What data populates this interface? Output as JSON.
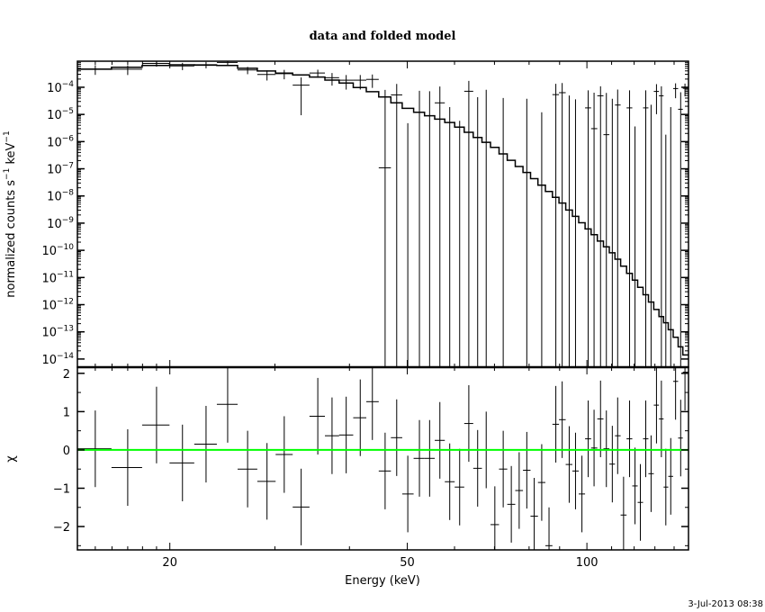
{
  "chart_data": {
    "type": "line",
    "title": "data and folded model",
    "xlabel": "Energy (keV)",
    "xscale": "log",
    "xlim": [
      14,
      148
    ],
    "xticks": [
      20,
      50,
      100
    ],
    "xtick_labels": [
      "20",
      "50",
      "100"
    ],
    "xminor": [
      14,
      15,
      16,
      17,
      18,
      19,
      30,
      40,
      60,
      70,
      80,
      90,
      110,
      120,
      130,
      140
    ],
    "timestamp": "3-Jul-2013 08:38",
    "top_panel": {
      "ylabel_main": "normalized counts s",
      "ylabel_sup1": "−1",
      "ylabel_mid": " keV",
      "ylabel_sup2": "−1",
      "yscale": "log",
      "ylim": [
        5e-15,
        0.00091
      ],
      "ytick_base": "10",
      "ytick_exponents": [
        "−4",
        "−5",
        "−6",
        "−7",
        "−8",
        "−9",
        "−10",
        "−11",
        "−12",
        "−13",
        "−14"
      ],
      "ytick_values": [
        0.0001,
        1e-05,
        1e-06,
        1e-07,
        1e-08,
        1e-09,
        1e-10,
        1e-11,
        1e-12,
        1e-13,
        1e-14
      ]
    },
    "bottom_panel": {
      "ylabel": "χ",
      "ylim": [
        -2.61,
        2.16
      ],
      "yticks": [
        2,
        1,
        0,
        -1,
        -2
      ],
      "ytick_labels": [
        "2",
        "1",
        "0",
        "−1",
        "−2"
      ],
      "zero_line_color": "#00ff00"
    },
    "model": {
      "energy": [
        14,
        15,
        20,
        25,
        30,
        35,
        40,
        45,
        50,
        60,
        70,
        80,
        90,
        100,
        110,
        120,
        130,
        140,
        148
      ],
      "value": [
        0.00045,
        0.00046,
        0.00068,
        0.00063,
        0.00036,
        0.00025,
        0.000135,
        5.5e-05,
        1.7e-05,
        4.4e-06,
        6.3e-07,
        6.3e-08,
        6.8e-09,
        6.8e-10,
        8.7e-11,
        8.9e-12,
        8e-13,
        8e-14,
        8e-15
      ]
    },
    "bins": {
      "energy": [
        15.0,
        17.0,
        19.0,
        21.0,
        23.0,
        25.0,
        27.0,
        29.1,
        31.1,
        33.2,
        35.4,
        37.4,
        39.5,
        41.7,
        43.7,
        45.9,
        48.0,
        50.1,
        52.4,
        54.5,
        56.7,
        58.9,
        61.2,
        63.4,
        65.6,
        67.8,
        70.1,
        72.4,
        74.7,
        77.0,
        79.3,
        81.6,
        84.0,
        86.4,
        88.7,
        90.9,
        93.4,
        95.7,
        98.1,
        100.5,
        102.8,
        105.4,
        107.8,
        110.3,
        112.6,
        115.2,
        117.9,
        120.4,
        122.9,
        125.5,
        128.1,
        130.8,
        133.3,
        135.6,
        138.2,
        140.8,
        143.6,
        146.0
      ],
      "chi": [
        0.03,
        -0.46,
        0.65,
        -0.34,
        0.15,
        1.19,
        -0.5,
        -0.82,
        -0.12,
        -1.49,
        0.88,
        0.37,
        0.39,
        0.84,
        1.26,
        -0.55,
        0.32,
        -1.15,
        -0.22,
        -0.22,
        0.25,
        -0.83,
        -0.97,
        0.69,
        -0.48,
        0.0,
        -1.95,
        -0.5,
        -1.42,
        -1.06,
        -0.53,
        -1.73,
        -0.85,
        -2.5,
        0.67,
        0.79,
        -0.38,
        -0.55,
        -1.15,
        0.29,
        0.05,
        0.81,
        0.03,
        -0.37,
        0.37,
        -1.7,
        0.29,
        -0.94,
        -1.37,
        0.29,
        -0.62,
        1.17,
        0.81,
        -0.97,
        -0.69,
        1.79,
        0.31,
        2.03
      ],
      "chi_err": 1,
      "sigma": [
        0.00018,
        0.00018,
        0.00018,
        0.00018,
        0.00018,
        0.00016,
        0.00013,
        0.00012,
        0.00012,
        0.00011,
        0.00011,
        0.00011,
        0.0001,
        0.0001,
        0.0001,
        8e-05,
        8e-05,
        8e-05,
        8e-05,
        8e-05,
        8e-05,
        8e-05,
        8e-05,
        0.0001,
        8e-05,
        8e-05,
        8e-05,
        8e-05,
        8e-05,
        8e-05,
        8e-05,
        8e-05,
        8e-05,
        8e-05,
        8e-05,
        8e-05,
        8e-05,
        8e-05,
        8e-05,
        6e-05,
        6e-05,
        6e-05,
        6e-05,
        6e-05,
        6e-05,
        6e-05,
        6e-05,
        6e-05,
        6e-05,
        6e-05,
        6e-05,
        6e-05,
        6e-05,
        6e-05,
        6e-05,
        5e-05,
        5e-05,
        4.5e-05
      ]
    }
  }
}
